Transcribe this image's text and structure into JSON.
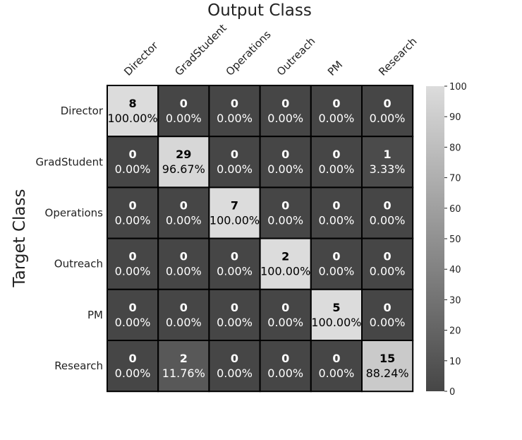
{
  "chart_data": {
    "type": "heatmap",
    "title": "Output Class",
    "xlabel": "Output Class",
    "ylabel": "Target Class",
    "x_categories": [
      "Director",
      "GradStudent",
      "Operations",
      "Outreach",
      "PM",
      "Research"
    ],
    "y_categories": [
      "Director",
      "GradStudent",
      "Operations",
      "Outreach",
      "PM",
      "Research"
    ],
    "counts": [
      [
        8,
        0,
        0,
        0,
        0,
        0
      ],
      [
        0,
        29,
        0,
        0,
        0,
        1
      ],
      [
        0,
        0,
        7,
        0,
        0,
        0
      ],
      [
        0,
        0,
        0,
        2,
        0,
        0
      ],
      [
        0,
        0,
        0,
        0,
        5,
        0
      ],
      [
        0,
        2,
        0,
        0,
        0,
        15
      ]
    ],
    "percent_labels": [
      [
        "100.00%",
        "0.00%",
        "0.00%",
        "0.00%",
        "0.00%",
        "0.00%"
      ],
      [
        "0.00%",
        "96.67%",
        "0.00%",
        "0.00%",
        "0.00%",
        "3.33%"
      ],
      [
        "0.00%",
        "0.00%",
        "100.00%",
        "0.00%",
        "0.00%",
        "0.00%"
      ],
      [
        "0.00%",
        "0.00%",
        "0.00%",
        "100.00%",
        "0.00%",
        "0.00%"
      ],
      [
        "0.00%",
        "0.00%",
        "0.00%",
        "0.00%",
        "100.00%",
        "0.00%"
      ],
      [
        "0.00%",
        "11.76%",
        "0.00%",
        "0.00%",
        "0.00%",
        "88.24%"
      ]
    ],
    "colorbar": {
      "min": 0,
      "max": 100,
      "ticks": [
        0,
        10,
        20,
        30,
        40,
        50,
        60,
        70,
        80,
        90,
        100
      ],
      "low_color": "#464646",
      "high_color": "#dcdcdc"
    },
    "grid_line_color": "#000000"
  }
}
